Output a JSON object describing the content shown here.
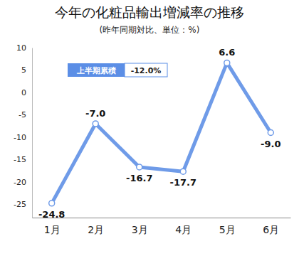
{
  "chart_data": {
    "type": "line",
    "title": "今年の化粧品輸出増減率の推移",
    "subtitle": "(昨年同期対比、単位：%)",
    "annotations": [
      "上半期累積",
      "-12.0%"
    ],
    "categories": [
      "1月",
      "2月",
      "3月",
      "4月",
      "5月",
      "6月"
    ],
    "values": [
      -24.8,
      -7.0,
      -16.7,
      -17.7,
      6.6,
      -9.0
    ],
    "value_labels": [
      "-24.8",
      "-7.0",
      "-16.7",
      "-17.7",
      "6.6",
      "-9.0"
    ],
    "data_labels": true,
    "color": "#6f9be8",
    "marker": "circle",
    "ylim": [
      -28,
      10
    ],
    "yticks": [
      10,
      5,
      0,
      -5,
      -10,
      -15,
      -20,
      -25
    ],
    "grid": false
  }
}
